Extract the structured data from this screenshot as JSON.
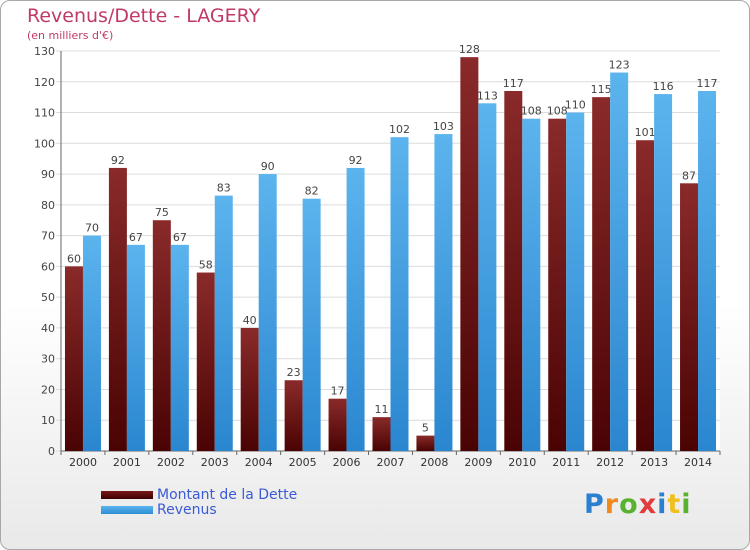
{
  "header": {
    "title": "Revenus/Dette - LAGERY",
    "subtitle": "(en milliers d'€)"
  },
  "logo": {
    "text": "Proxiti",
    "colors": [
      "#2b7fd0",
      "#f08a1c",
      "#58b22f",
      "#e23b3b",
      "#2b7fd0",
      "#f0c01c",
      "#58b22f"
    ]
  },
  "colors": {
    "dette": "#6b1414",
    "revenus": "#3d9de0",
    "title": "#c03a67",
    "legend_text": "#3a5bd6"
  },
  "chart_data": {
    "type": "bar",
    "categories": [
      "2000",
      "2001",
      "2002",
      "2003",
      "2004",
      "2005",
      "2006",
      "2007",
      "2008",
      "2009",
      "2010",
      "2011",
      "2012",
      "2013",
      "2014"
    ],
    "series": [
      {
        "name": "Montant de la Dette",
        "values": [
          60,
          92,
          75,
          58,
          40,
          23,
          17,
          11,
          5,
          128,
          117,
          108,
          115,
          101,
          87
        ]
      },
      {
        "name": "Revenus",
        "values": [
          70,
          67,
          67,
          83,
          90,
          82,
          92,
          102,
          103,
          113,
          108,
          110,
          123,
          116,
          117
        ]
      }
    ],
    "ylim": [
      0,
      130
    ],
    "yticks": [
      0,
      10,
      20,
      30,
      40,
      50,
      60,
      70,
      80,
      90,
      100,
      110,
      120,
      130
    ],
    "grid": true,
    "legend_position": "bottom-left"
  }
}
